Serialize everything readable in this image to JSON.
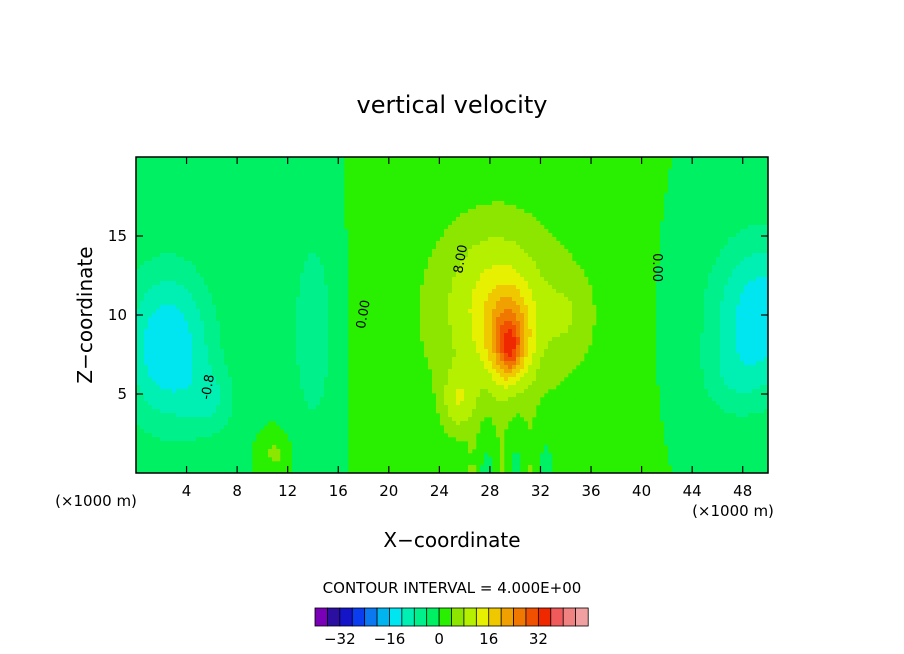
{
  "chart_data": {
    "type": "heatmap",
    "title": "vertical velocity",
    "xlabel": "X−coordinate",
    "ylabel": "Z−coordinate",
    "x_unit_left": "(×1000 m)",
    "x_unit_right": "(×1000 m)",
    "xlim": [
      0,
      50
    ],
    "ylim": [
      0,
      20
    ],
    "x_ticks": [
      4,
      8,
      12,
      16,
      20,
      24,
      28,
      32,
      36,
      40,
      44,
      48
    ],
    "y_ticks": [
      5,
      10,
      15
    ],
    "contour_interval_text": "CONTOUR INTERVAL = 4.000E+00",
    "contour_labels": [
      {
        "text": "8.00",
        "x": 26,
        "y": 13.5
      },
      {
        "text": "0.00",
        "x": 18.3,
        "y": 10.0
      },
      {
        "text": "0.00",
        "x": 40.9,
        "y": 13.0
      },
      {
        "text": "-0.8",
        "x": 6.0,
        "y": 5.4
      }
    ],
    "field_features": [
      {
        "name": "updraft core",
        "x": 29.5,
        "y": 8.5,
        "peak": 34
      },
      {
        "name": "upper updraft",
        "x": 28.5,
        "y": 11,
        "peak": 12
      },
      {
        "name": "lower-left updraft",
        "x": 25.5,
        "y": 4.5,
        "peak": 14
      },
      {
        "name": "left downdraft",
        "x": 2.5,
        "y": 8,
        "peak": -16
      },
      {
        "name": "right downdraft",
        "x": 49,
        "y": 10,
        "peak": -14
      }
    ],
    "colorbar": {
      "colors": [
        "#7a00b8",
        "#2a0fa0",
        "#1414c8",
        "#0a3cf0",
        "#0a78f0",
        "#00b4f0",
        "#00e6f0",
        "#00f0b4",
        "#00f08c",
        "#00f064",
        "#28f000",
        "#8ce600",
        "#b4f000",
        "#e6f000",
        "#f0c800",
        "#f0a000",
        "#f07800",
        "#f05000",
        "#f02800",
        "#f05a5a",
        "#f08282",
        "#f0a0a0"
      ],
      "tick_labels": [
        "−32",
        "−16",
        "0",
        "16",
        "32"
      ],
      "tick_values": [
        -32,
        -16,
        0,
        16,
        32
      ],
      "range": [
        -40,
        48
      ]
    }
  }
}
